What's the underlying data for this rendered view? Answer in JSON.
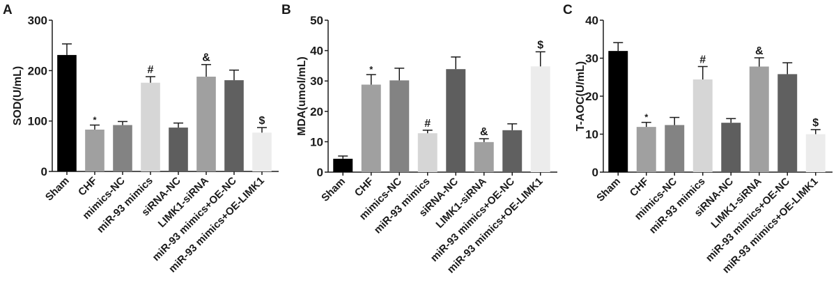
{
  "chart_data": [
    {
      "type": "bar",
      "panel": "A",
      "title": "",
      "xlabel": "",
      "ylabel": "SOD(U/mL)",
      "ylim": [
        0,
        300
      ],
      "yticks": [
        0,
        100,
        200,
        300
      ],
      "grid": false,
      "categories": [
        "Sham",
        "CHF",
        "mimics-NC",
        "miR-93 mimics",
        "siRNA-NC",
        "LIMK1-siRNA",
        "miR-93 mimics+OE-NC",
        "miR-93 mimics+OE-LIMK1"
      ],
      "values": [
        231,
        83,
        92,
        176,
        87,
        188,
        181,
        77
      ],
      "error_upper": [
        253,
        92,
        99,
        188,
        96,
        212,
        201,
        87
      ],
      "annotations": [
        "",
        "*",
        "",
        "#",
        "",
        "&",
        "",
        "$"
      ]
    },
    {
      "type": "bar",
      "panel": "B",
      "title": "",
      "xlabel": "",
      "ylabel": "MDA(umol/mL)",
      "ylim": [
        0,
        50
      ],
      "yticks": [
        0,
        10,
        20,
        30,
        40,
        50
      ],
      "grid": false,
      "categories": [
        "Sham",
        "CHF",
        "mimics-NC",
        "miR-93 mimics",
        "siRNA-NC",
        "LIMK1-siRNA",
        "miR-93 mimics+OE-NC",
        "miR-93 mimics+OE-LIMK1"
      ],
      "values": [
        4.4,
        28.8,
        30.2,
        12.8,
        33.9,
        9.9,
        13.8,
        34.8
      ],
      "error_upper": [
        5.3,
        32.1,
        34.2,
        13.8,
        37.9,
        11.0,
        15.9,
        39.6
      ],
      "annotations": [
        "",
        "*",
        "",
        "#",
        "",
        "&",
        "",
        "$"
      ]
    },
    {
      "type": "bar",
      "panel": "C",
      "title": "",
      "xlabel": "",
      "ylabel": "T-AOC(U/mL)",
      "ylim": [
        0,
        40
      ],
      "yticks": [
        0,
        10,
        20,
        30,
        40
      ],
      "grid": false,
      "categories": [
        "Sham",
        "CHF",
        "mimics-NC",
        "miR-93 mimics",
        "siRNA-NC",
        "LIMK1-siRNA",
        "miR-93 mimics+OE-NC",
        "miR-93 mimics+OE-LIMK1"
      ],
      "values": [
        31.9,
        11.9,
        12.4,
        24.4,
        13.0,
        27.8,
        25.8,
        10.0
      ],
      "error_upper": [
        34.1,
        13.1,
        14.4,
        27.8,
        14.1,
        30.1,
        28.8,
        11.2
      ],
      "annotations": [
        "",
        "*",
        "",
        "#",
        "",
        "&",
        "",
        "$"
      ]
    }
  ],
  "bar_colors": [
    "#000000",
    "#a0a0a0",
    "#838383",
    "#d6d6d6",
    "#5e5e5e",
    "#a0a0a0",
    "#606060",
    "#ececec"
  ],
  "axis_color": "#1a1a1a"
}
